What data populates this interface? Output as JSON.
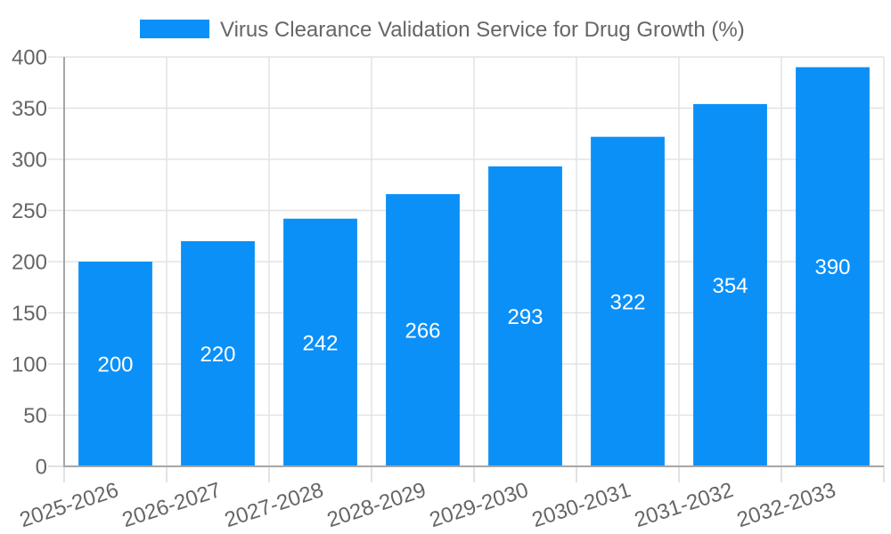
{
  "chart_data": {
    "type": "bar",
    "title": "Virus Clearance Validation Service for Drug Growth (%)",
    "categories": [
      "2025-2026",
      "2026-2027",
      "2027-2028",
      "2028-2029",
      "2029-2030",
      "2030-2031",
      "2031-2032",
      "2032-2033"
    ],
    "values": [
      200,
      220,
      242,
      266,
      293,
      322,
      354,
      390
    ],
    "xlabel": "",
    "ylabel": "",
    "ylim": [
      0,
      400
    ],
    "ytick_step": 50,
    "ytick_labels": [
      "0",
      "50",
      "100",
      "150",
      "200",
      "250",
      "300",
      "350",
      "400"
    ],
    "grid": true,
    "legend_position": "top",
    "colors": {
      "bar": "#0b90f8",
      "value_label": "#ffffff",
      "axis_text": "#666666",
      "grid_line": "#e3e3e3",
      "tick_line": "#d9d9d9",
      "axis_border": "#a6a6a6",
      "background": "#ffffff"
    }
  }
}
